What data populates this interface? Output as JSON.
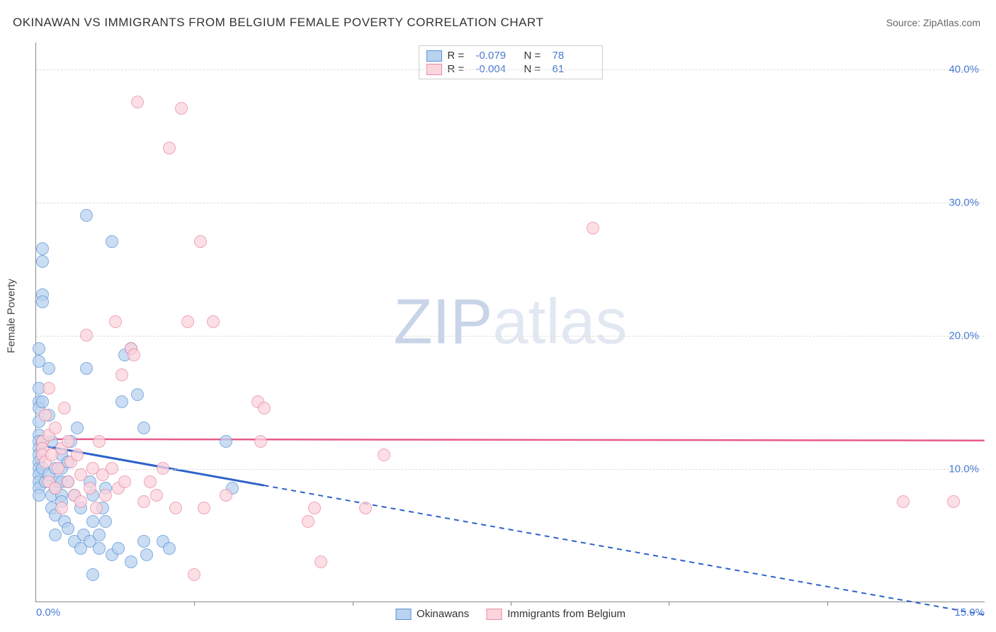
{
  "title": "OKINAWAN VS IMMIGRANTS FROM BELGIUM FEMALE POVERTY CORRELATION CHART",
  "source": "Source: ZipAtlas.com",
  "watermark": {
    "zip": "ZIP",
    "atlas": "atlas"
  },
  "ylabel": "Female Poverty",
  "colors": {
    "series_a_fill": "#b9d2f0",
    "series_a_stroke": "#5a93d6",
    "series_a_line": "#2e62c9",
    "series_b_fill": "#fcd4dd",
    "series_b_stroke": "#e88ba2",
    "series_b_line": "#e75a8a",
    "tick_text": "#4a7bd0",
    "grid": "#dddddd",
    "axis": "#888888"
  },
  "chart": {
    "type": "scatter",
    "xlim": [
      0,
      15
    ],
    "ylim": [
      0,
      42
    ],
    "xticks": [
      0,
      2.5,
      5,
      7.5,
      10,
      12.5,
      15
    ],
    "xaxis_labels": {
      "left": "0.0%",
      "right": "15.0%"
    },
    "yticks": [
      {
        "v": 10,
        "label": "10.0%"
      },
      {
        "v": 20,
        "label": "20.0%"
      },
      {
        "v": 30,
        "label": "30.0%"
      },
      {
        "v": 40,
        "label": "40.0%"
      }
    ],
    "point_radius": 9
  },
  "legend_top": [
    {
      "series": "a",
      "r_label": "R =",
      "r": "-0.079",
      "n_label": "N =",
      "n": "78"
    },
    {
      "series": "b",
      "r_label": "R =",
      "r": "-0.004",
      "n_label": "N =",
      "n": "61"
    }
  ],
  "legend_bottom": [
    {
      "series": "a",
      "label": "Okinawans"
    },
    {
      "series": "b",
      "label": "Immigrants from Belgium"
    }
  ],
  "trend_lines": {
    "a": {
      "solid_from_x": 0,
      "solid_to_x": 3.6,
      "y_at_0": 11.8,
      "y_at_15": -1.0
    },
    "b": {
      "y_at_0": 12.2,
      "y_at_15": 12.1
    }
  },
  "series_a": [
    [
      0.05,
      19
    ],
    [
      0.05,
      18
    ],
    [
      0.05,
      16
    ],
    [
      0.05,
      15
    ],
    [
      0.05,
      14.5
    ],
    [
      0.05,
      13.5
    ],
    [
      0.05,
      12.5
    ],
    [
      0.05,
      12
    ],
    [
      0.05,
      11.5
    ],
    [
      0.05,
      11
    ],
    [
      0.05,
      10.5
    ],
    [
      0.05,
      10
    ],
    [
      0.05,
      9.5
    ],
    [
      0.05,
      9
    ],
    [
      0.05,
      8.5
    ],
    [
      0.05,
      8
    ],
    [
      0.1,
      26.5
    ],
    [
      0.1,
      25.5
    ],
    [
      0.1,
      23
    ],
    [
      0.1,
      22.5
    ],
    [
      0.1,
      15
    ],
    [
      0.1,
      12
    ],
    [
      0.1,
      10
    ],
    [
      0.15,
      9
    ],
    [
      0.2,
      17.5
    ],
    [
      0.2,
      14
    ],
    [
      0.2,
      9.5
    ],
    [
      0.25,
      12
    ],
    [
      0.25,
      8
    ],
    [
      0.25,
      7
    ],
    [
      0.3,
      10
    ],
    [
      0.3,
      8.5
    ],
    [
      0.3,
      6.5
    ],
    [
      0.3,
      5
    ],
    [
      0.35,
      9
    ],
    [
      0.4,
      11
    ],
    [
      0.4,
      10
    ],
    [
      0.4,
      9
    ],
    [
      0.4,
      8
    ],
    [
      0.4,
      7.5
    ],
    [
      0.45,
      6
    ],
    [
      0.5,
      10.5
    ],
    [
      0.5,
      9
    ],
    [
      0.5,
      5.5
    ],
    [
      0.55,
      12
    ],
    [
      0.6,
      8
    ],
    [
      0.6,
      4.5
    ],
    [
      0.65,
      13
    ],
    [
      0.7,
      7
    ],
    [
      0.7,
      4
    ],
    [
      0.75,
      5
    ],
    [
      0.8,
      17.5
    ],
    [
      0.8,
      29
    ],
    [
      0.85,
      9
    ],
    [
      0.85,
      4.5
    ],
    [
      0.9,
      8
    ],
    [
      0.9,
      6
    ],
    [
      0.9,
      2
    ],
    [
      1.0,
      5
    ],
    [
      1.0,
      4
    ],
    [
      1.05,
      7
    ],
    [
      1.1,
      8.5
    ],
    [
      1.1,
      6
    ],
    [
      1.2,
      27
    ],
    [
      1.2,
      3.5
    ],
    [
      1.3,
      4
    ],
    [
      1.35,
      15
    ],
    [
      1.4,
      18.5
    ],
    [
      1.5,
      19
    ],
    [
      1.5,
      3
    ],
    [
      1.6,
      15.5
    ],
    [
      1.7,
      4.5
    ],
    [
      1.7,
      13
    ],
    [
      1.75,
      3.5
    ],
    [
      2.0,
      4.5
    ],
    [
      2.1,
      4
    ],
    [
      3.0,
      12
    ],
    [
      3.1,
      8.5
    ]
  ],
  "series_b": [
    [
      0.1,
      12
    ],
    [
      0.1,
      11.5
    ],
    [
      0.1,
      11
    ],
    [
      0.15,
      14
    ],
    [
      0.15,
      10.5
    ],
    [
      0.2,
      16
    ],
    [
      0.2,
      12.5
    ],
    [
      0.2,
      9
    ],
    [
      0.25,
      11
    ],
    [
      0.3,
      13
    ],
    [
      0.3,
      8.5
    ],
    [
      0.35,
      10
    ],
    [
      0.4,
      11.5
    ],
    [
      0.4,
      7
    ],
    [
      0.45,
      14.5
    ],
    [
      0.5,
      12
    ],
    [
      0.5,
      9
    ],
    [
      0.55,
      10.5
    ],
    [
      0.6,
      8
    ],
    [
      0.65,
      11
    ],
    [
      0.7,
      9.5
    ],
    [
      0.7,
      7.5
    ],
    [
      0.8,
      20
    ],
    [
      0.85,
      8.5
    ],
    [
      0.9,
      10
    ],
    [
      0.95,
      7
    ],
    [
      1.0,
      12
    ],
    [
      1.05,
      9.5
    ],
    [
      1.1,
      8
    ],
    [
      1.2,
      10
    ],
    [
      1.25,
      21
    ],
    [
      1.3,
      8.5
    ],
    [
      1.35,
      17
    ],
    [
      1.4,
      9
    ],
    [
      1.5,
      19
    ],
    [
      1.55,
      18.5
    ],
    [
      1.6,
      37.5
    ],
    [
      1.7,
      7.5
    ],
    [
      1.8,
      9
    ],
    [
      1.9,
      8
    ],
    [
      2.0,
      10
    ],
    [
      2.1,
      34
    ],
    [
      2.2,
      7
    ],
    [
      2.3,
      37
    ],
    [
      2.4,
      21
    ],
    [
      2.5,
      2
    ],
    [
      2.6,
      27
    ],
    [
      2.65,
      7
    ],
    [
      2.8,
      21
    ],
    [
      3.0,
      8
    ],
    [
      3.5,
      15
    ],
    [
      3.55,
      12
    ],
    [
      3.6,
      14.5
    ],
    [
      4.3,
      6
    ],
    [
      4.4,
      7
    ],
    [
      4.5,
      3
    ],
    [
      5.2,
      7
    ],
    [
      5.5,
      11
    ],
    [
      8.8,
      28
    ],
    [
      13.7,
      7.5
    ],
    [
      14.5,
      7.5
    ]
  ]
}
